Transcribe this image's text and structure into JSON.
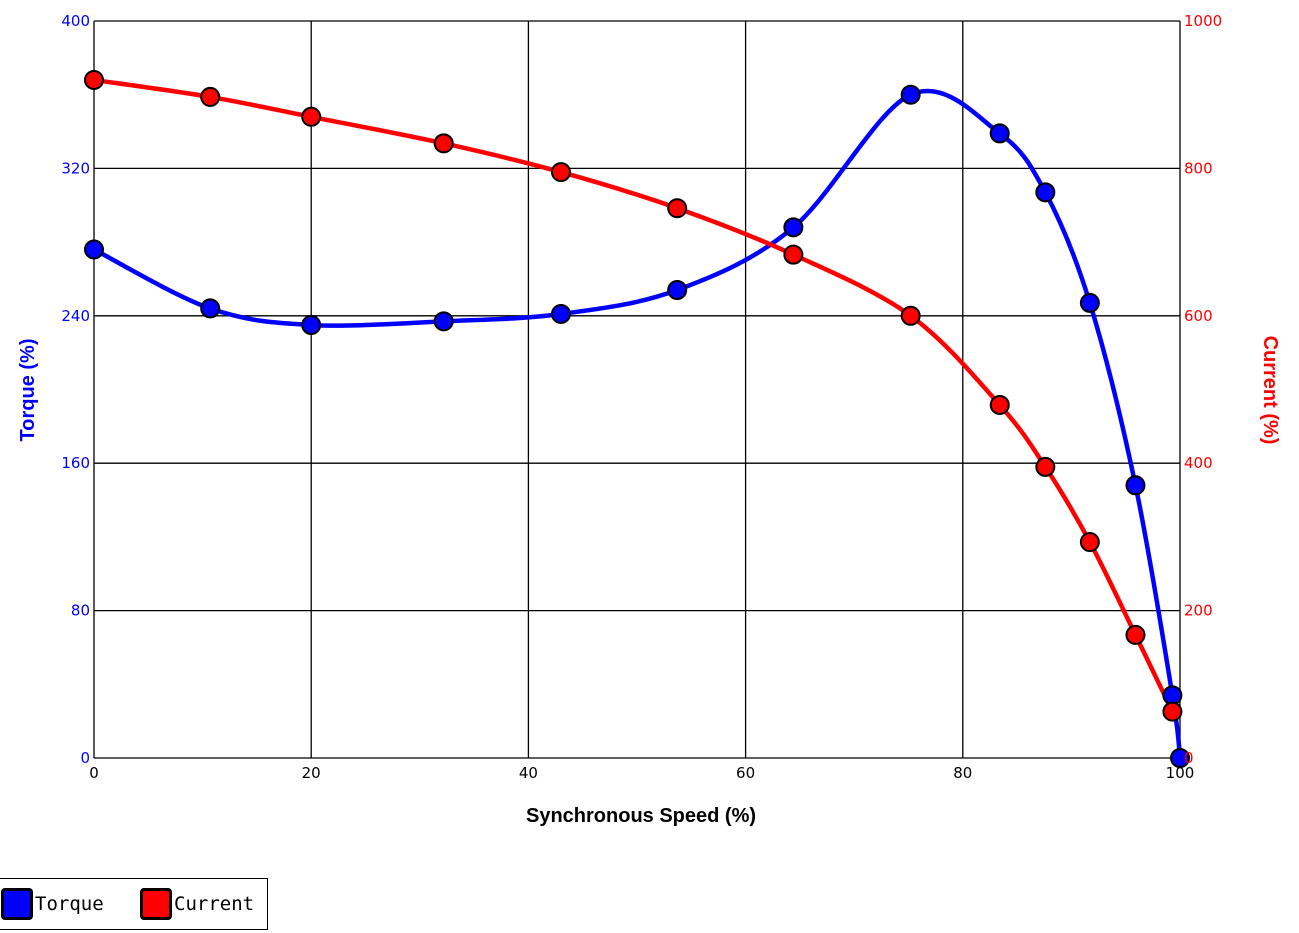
{
  "chart_data": {
    "type": "line",
    "xlabel": "Synchronous Speed (%)",
    "y_left_label": "Torque (%)",
    "y_right_label": "Current (%)",
    "xlim": [
      0,
      100
    ],
    "y_left_lim": [
      0,
      400
    ],
    "y_right_lim": [
      0,
      1000
    ],
    "x_ticks": [
      "0",
      "20",
      "40",
      "60",
      "80",
      "100"
    ],
    "y_left_ticks": [
      "0",
      "80",
      "160",
      "240",
      "320",
      "400"
    ],
    "y_right_ticks": [
      "0",
      "200",
      "400",
      "600",
      "800",
      "1000"
    ],
    "grid": true,
    "legend_position": "bottom-left",
    "series": [
      {
        "name": "Torque",
        "color": "#0000ff",
        "axis": "left",
        "x": [
          0,
          10.7,
          20,
          32.2,
          43,
          53.7,
          64.4,
          75.2,
          83.4,
          87.6,
          91.7,
          95.9,
          99.3,
          100
        ],
        "values": [
          276,
          244,
          235,
          237,
          241,
          254,
          288,
          360,
          339,
          307,
          247,
          148,
          34,
          0
        ]
      },
      {
        "name": "Current",
        "color": "#ff0000",
        "axis": "right",
        "x": [
          0,
          10.7,
          20,
          32.2,
          43,
          53.7,
          64.4,
          75.2,
          83.4,
          87.6,
          91.7,
          95.9,
          99.3
        ],
        "values": [
          920,
          897,
          870,
          834,
          795,
          746,
          683,
          600,
          479,
          395,
          293,
          167,
          63
        ]
      }
    ]
  }
}
